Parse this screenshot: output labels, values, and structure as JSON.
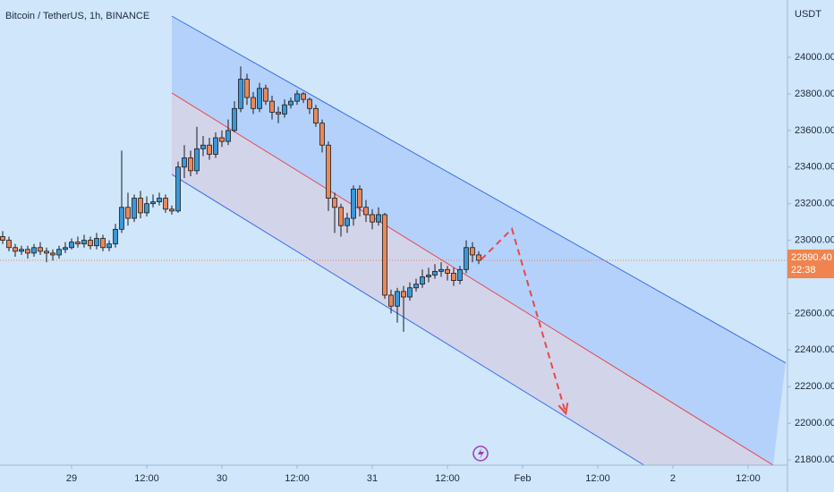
{
  "chart_data": {
    "type": "candlestick",
    "title": "Bitcoin / TetherUS, 1h, BINANCE",
    "y_axis_label": "USDT",
    "x": [
      -11,
      -10,
      -9,
      -8,
      -7,
      -6,
      -5,
      -4,
      -3,
      -2,
      -1,
      0,
      1,
      2,
      3,
      4,
      5,
      6,
      7,
      8,
      9,
      10,
      11,
      12,
      13,
      14,
      15,
      16,
      17,
      18,
      19,
      20,
      21,
      22,
      23,
      24,
      25,
      26,
      27,
      28,
      29,
      30,
      31,
      32,
      33,
      34,
      35,
      36,
      37,
      38,
      39,
      40,
      41,
      42,
      43,
      44,
      45,
      46,
      47,
      48,
      49,
      50,
      51,
      52,
      53,
      54,
      55,
      56,
      57,
      58,
      59,
      60,
      61,
      62,
      63,
      64,
      65
    ],
    "open": [
      23020,
      23000,
      22960,
      22940,
      22950,
      22930,
      22960,
      22940,
      22930,
      22920,
      22950,
      22960,
      22990,
      22980,
      23000,
      22970,
      23010,
      22960,
      22980,
      23060,
      23180,
      23120,
      23230,
      23150,
      23200,
      23210,
      23230,
      23170,
      23160,
      23400,
      23450,
      23380,
      23500,
      23520,
      23470,
      23560,
      23540,
      23600,
      23720,
      23880,
      23780,
      23720,
      23830,
      23760,
      23700,
      23690,
      23740,
      23760,
      23800,
      23770,
      23720,
      23640,
      23520,
      23230,
      23180,
      23080,
      23120,
      23280,
      23180,
      23140,
      23100,
      23140,
      22700,
      22640,
      22720,
      22690,
      22740,
      22760,
      22800,
      22810,
      22830,
      22840,
      22820,
      22780,
      22840,
      22960,
      22920
    ],
    "high": [
      23050,
      23020,
      22980,
      22970,
      22970,
      22980,
      22990,
      22960,
      22950,
      22970,
      22990,
      23010,
      23020,
      23030,
      23020,
      23040,
      23030,
      23000,
      23090,
      23490,
      23260,
      23250,
      23270,
      23240,
      23250,
      23260,
      23250,
      23190,
      23430,
      23520,
      23490,
      23620,
      23570,
      23560,
      23590,
      23600,
      23660,
      23760,
      23950,
      23910,
      23810,
      23860,
      23850,
      23790,
      23730,
      23770,
      23780,
      23820,
      23810,
      23780,
      23740,
      23660,
      23540,
      23260,
      23200,
      23150,
      23300,
      23300,
      23220,
      23170,
      23180,
      23150,
      22730,
      22740,
      22750,
      22770,
      22790,
      22840,
      22850,
      22870,
      22880,
      22860,
      22850,
      22860,
      23000,
      22990,
      22940
    ],
    "low": [
      22980,
      22940,
      22910,
      22920,
      22900,
      22910,
      22920,
      22880,
      22890,
      22900,
      22930,
      22950,
      22960,
      22960,
      22950,
      22950,
      22940,
      22940,
      22960,
      23040,
      23080,
      23100,
      23120,
      23130,
      23180,
      23190,
      23150,
      23140,
      23150,
      23340,
      23350,
      23360,
      23460,
      23440,
      23450,
      23510,
      23520,
      23590,
      23700,
      23740,
      23690,
      23700,
      23740,
      23660,
      23640,
      23670,
      23720,
      23740,
      23750,
      23690,
      23620,
      23480,
      23160,
      23040,
      23020,
      23040,
      23080,
      23130,
      23100,
      23060,
      23080,
      22680,
      22600,
      22550,
      22500,
      22670,
      22720,
      22740,
      22770,
      22790,
      22800,
      22780,
      22750,
      22760,
      22820,
      22880,
      22870
    ],
    "close": [
      23000,
      22960,
      22940,
      22950,
      22930,
      22960,
      22940,
      22930,
      22920,
      22950,
      22960,
      22990,
      22980,
      23000,
      22970,
      23010,
      22960,
      22980,
      23060,
      23180,
      23120,
      23230,
      23150,
      23200,
      23210,
      23230,
      23170,
      23160,
      23400,
      23450,
      23380,
      23500,
      23520,
      23470,
      23560,
      23540,
      23600,
      23720,
      23880,
      23780,
      23720,
      23830,
      23760,
      23700,
      23690,
      23740,
      23760,
      23800,
      23770,
      23720,
      23640,
      23520,
      23230,
      23180,
      23080,
      23120,
      23280,
      23180,
      23140,
      23100,
      23140,
      22700,
      22640,
      22720,
      22690,
      22740,
      22760,
      22800,
      22810,
      22830,
      22840,
      22820,
      22780,
      22840,
      22960,
      22920,
      22890.4
    ],
    "up_color": "#3b98d6",
    "down_color": "#e8895a",
    "last_price": 22890.4,
    "last_price_label": "22890.40",
    "countdown": "22:38",
    "last_price_color": "#f0834e",
    "channel": {
      "upper": {
        "x": [
          16,
          114
        ],
        "y": [
          24225,
          22330
        ],
        "color": "#3a6ee8"
      },
      "middle": {
        "x": [
          16,
          112
        ],
        "y": [
          23805,
          21771
        ],
        "color": "#e8484a"
      },
      "lower": {
        "x": [
          16,
          91.4
        ],
        "y": [
          23360,
          21771
        ],
        "color": "#3a6ee8"
      }
    },
    "projection": {
      "x": [
        65.4,
        70.3,
        78.9
      ],
      "y": [
        22895,
        23062,
        22054
      ],
      "color": "#e8484a"
    },
    "xlim": [
      -11.43,
      114.29
    ],
    "ylim": [
      21771,
      24313
    ],
    "xticks": [
      {
        "value": 0,
        "label": "29"
      },
      {
        "value": 12,
        "label": "12:00"
      },
      {
        "value": 24,
        "label": "30"
      },
      {
        "value": 36,
        "label": "12:00"
      },
      {
        "value": 48,
        "label": "31"
      },
      {
        "value": 60,
        "label": "12:00"
      },
      {
        "value": 72,
        "label": "Feb"
      },
      {
        "value": 84,
        "label": "12:00"
      },
      {
        "value": 96,
        "label": "2"
      },
      {
        "value": 108,
        "label": "12:00"
      }
    ],
    "yticks": [
      {
        "value": 21800,
        "label": "21800.00"
      },
      {
        "value": 22000,
        "label": "22000.00"
      },
      {
        "value": 22200,
        "label": "22200.00"
      },
      {
        "value": 22400,
        "label": "22400.00"
      },
      {
        "value": 22600,
        "label": "22600.00"
      },
      {
        "value": 23000,
        "label": "23000.00"
      },
      {
        "value": 23200,
        "label": "23200.00"
      },
      {
        "value": 23400,
        "label": "23400.00"
      },
      {
        "value": 23600,
        "label": "23600.00"
      },
      {
        "value": 23800,
        "label": "23800.00"
      },
      {
        "value": 24000,
        "label": "24000.00"
      }
    ],
    "grid": false
  }
}
